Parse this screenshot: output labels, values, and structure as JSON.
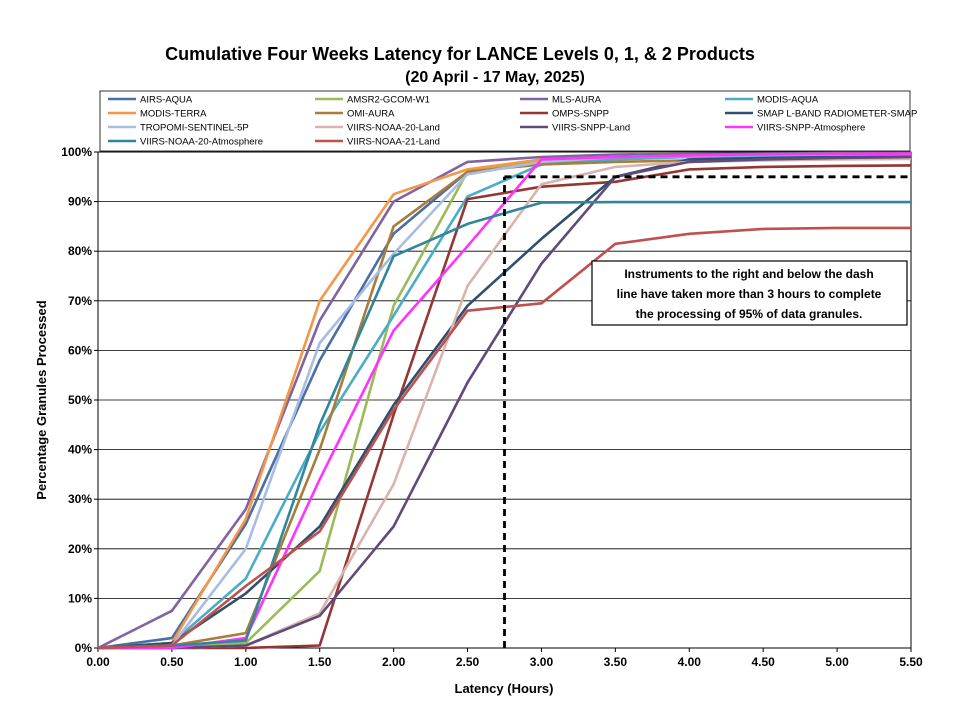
{
  "chart_data": {
    "type": "line",
    "title": "Cumulative Four Weeks Latency  for LANCE Levels 0, 1, & 2 Products",
    "subtitle": "(20  April   -  17  May,  2025)",
    "xlabel": "Latency (Hours)",
    "ylabel": "Percentage Granules Processed",
    "xlim": [
      0,
      5.5
    ],
    "ylim": [
      0,
      100
    ],
    "x_ticks": [
      "0.00",
      "0.50",
      "1.00",
      "1.50",
      "2.00",
      "2.50",
      "3.00",
      "3.50",
      "4.00",
      "4.50",
      "5.00",
      "5.50"
    ],
    "y_ticks": [
      "0%",
      "10%",
      "20%",
      "30%",
      "40%",
      "50%",
      "60%",
      "70%",
      "80%",
      "90%",
      "100%"
    ],
    "grid": true,
    "legend_position": "top",
    "x": [
      0,
      0.5,
      1.0,
      1.5,
      2.0,
      2.5,
      3.0,
      3.5,
      4.0,
      4.5,
      5.0,
      5.5
    ],
    "series": [
      {
        "name": "AIRS-AQUA",
        "color": "#4A6FA5",
        "values": [
          0,
          2.0,
          25.0,
          58.0,
          83.5,
          96.0,
          98.0,
          99.0,
          99.3,
          99.5,
          99.6,
          99.7
        ]
      },
      {
        "name": "AMSR2-GCOM-W1",
        "color": "#9BBB59",
        "values": [
          0,
          0,
          1.0,
          15.5,
          69.0,
          96.0,
          98.5,
          99.0,
          99.3,
          99.5,
          99.6,
          99.7
        ]
      },
      {
        "name": "MLS-AURA",
        "color": "#8064A2",
        "values": [
          0,
          7.5,
          28.0,
          66.0,
          90.0,
          98.0,
          99.0,
          99.5,
          99.6,
          99.7,
          99.8,
          99.8
        ]
      },
      {
        "name": "MODIS-AQUA",
        "color": "#4BACC6",
        "values": [
          0,
          1.0,
          14.0,
          43.5,
          67.0,
          91.0,
          97.5,
          98.5,
          99.0,
          99.2,
          99.3,
          99.4
        ]
      },
      {
        "name": "MODIS-TERRA",
        "color": "#F79646",
        "values": [
          0,
          1.0,
          26.0,
          70.0,
          91.5,
          96.5,
          98.5,
          99.0,
          99.3,
          99.5,
          99.6,
          99.6
        ]
      },
      {
        "name": "OMI-AURA",
        "color": "#A87C3A",
        "values": [
          0,
          0.5,
          3.0,
          40.0,
          85.0,
          96.0,
          97.5,
          98.0,
          98.3,
          98.5,
          98.6,
          98.7
        ]
      },
      {
        "name": "OMPS-SNPP",
        "color": "#943634",
        "values": [
          0,
          0,
          0,
          0.5,
          47.0,
          90.5,
          93.0,
          94.0,
          96.5,
          97.0,
          97.2,
          97.3
        ]
      },
      {
        "name": "SMAP L-BAND RADIOMETER-SMAP",
        "color": "#2F4F6F",
        "values": [
          0,
          1.0,
          11.0,
          24.5,
          49.0,
          69.0,
          82.5,
          95.0,
          98.5,
          98.8,
          99.0,
          99.1
        ]
      },
      {
        "name": "TROPOMI-SENTINEL-5P",
        "color": "#A9BCE3",
        "values": [
          0,
          0.5,
          20.0,
          61.5,
          79.5,
          95.5,
          98.0,
          99.0,
          99.2,
          99.4,
          99.5,
          99.6
        ]
      },
      {
        "name": "VIIRS-NOAA-20-Land",
        "color": "#D9B4AE",
        "values": [
          0,
          0,
          0.5,
          7.0,
          33.0,
          73.0,
          93.5,
          97.0,
          98.0,
          98.3,
          98.5,
          98.6
        ]
      },
      {
        "name": "VIIRS-SNPP-Land",
        "color": "#604A7B",
        "values": [
          0,
          0,
          0.5,
          6.5,
          24.5,
          53.5,
          77.5,
          95.0,
          98.0,
          98.5,
          98.8,
          99.0
        ]
      },
      {
        "name": "VIIRS-SNPP-Atmosphere",
        "color": "#FF33FF",
        "values": [
          0,
          0,
          2.0,
          34.0,
          64.0,
          81.0,
          98.5,
          99.0,
          99.3,
          99.5,
          99.6,
          99.7
        ]
      },
      {
        "name": "VIIRS-NOAA-20-Atmosphere",
        "color": "#31859C",
        "values": [
          0,
          0.5,
          1.5,
          45.0,
          79.0,
          85.5,
          89.8,
          89.9,
          89.9,
          89.9,
          89.9,
          89.9
        ]
      },
      {
        "name": "VIIRS-NOAA-21-Land",
        "color": "#C0504D",
        "values": [
          0,
          0.5,
          12.5,
          23.5,
          48.0,
          68.0,
          69.5,
          81.5,
          83.5,
          84.5,
          84.7,
          84.7
        ]
      }
    ],
    "threshold": {
      "x": 2.75,
      "y": 95
    },
    "annotation": {
      "lines": [
        "Instruments to the right and below the dash",
        "line have taken more than 3 hours to complete",
        "the processing of 95% of data granules."
      ]
    }
  }
}
